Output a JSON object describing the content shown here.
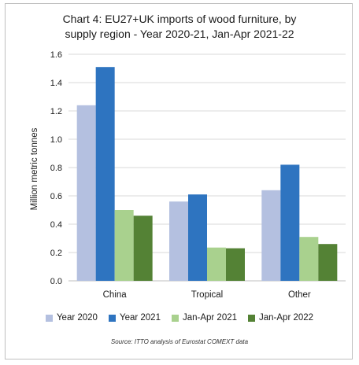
{
  "chart_data": {
    "type": "bar",
    "title_line1": "Chart 4: EU27+UK imports of wood furniture, by",
    "title_line2": "supply region - Year 2020-21, Jan-Apr 2021-22",
    "ylabel": "Million metric tonnes",
    "xlabel": "",
    "ylim": [
      0,
      1.6
    ],
    "yticks": [
      "0.0",
      "0.2",
      "0.4",
      "0.6",
      "0.8",
      "1.0",
      "1.2",
      "1.4",
      "1.6"
    ],
    "categories": [
      "China",
      "Tropical",
      "Other"
    ],
    "series": [
      {
        "name": "Year 2020",
        "color": "#b4c0e0",
        "values": [
          1.24,
          0.56,
          0.64
        ]
      },
      {
        "name": "Year 2021",
        "color": "#2e74c0",
        "values": [
          1.51,
          0.61,
          0.82
        ]
      },
      {
        "name": "Jan-Apr 2021",
        "color": "#a9d18e",
        "values": [
          0.5,
          0.235,
          0.31
        ]
      },
      {
        "name": "Jan-Apr 2022",
        "color": "#548235",
        "values": [
          0.46,
          0.23,
          0.26
        ]
      }
    ],
    "grid": true,
    "legend": "bottom",
    "source": "Source: ITTO analysis of Eurostat COMEXT data"
  }
}
